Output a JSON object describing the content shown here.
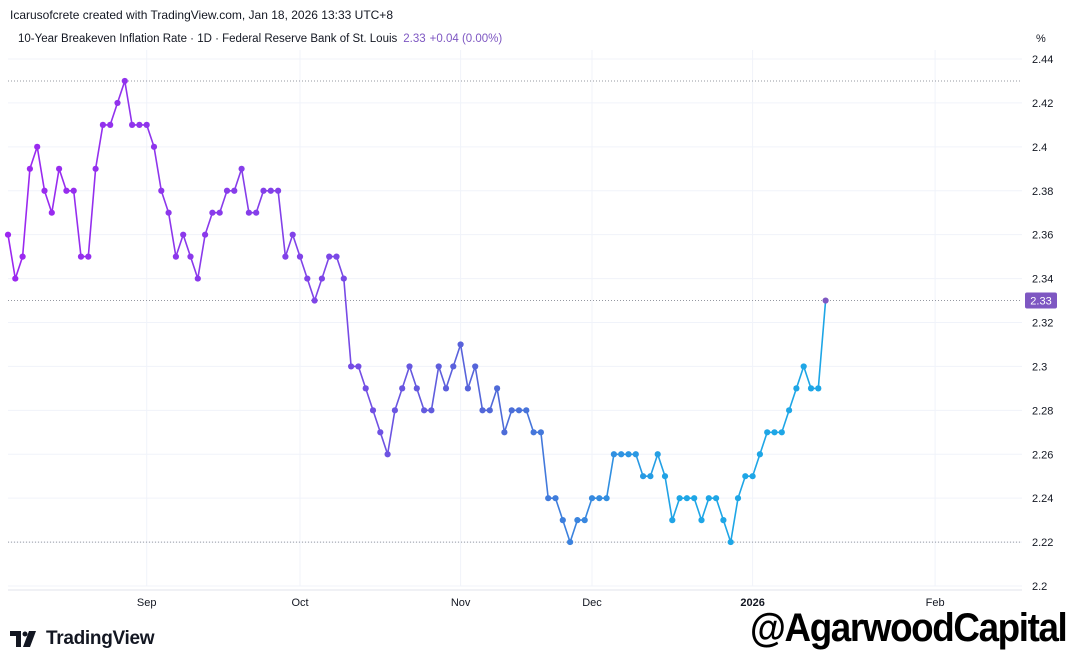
{
  "header": {
    "caption": "Icarusofcrete created with TradingView.com, Jan 18, 2026 13:33 UTC+8",
    "legend_title": "10-Year Breakeven Inflation Rate · 1D · Federal Reserve Bank of St. Louis",
    "legend_value": "2.33",
    "legend_change": "+0.04 (0.00%)",
    "unit": "%"
  },
  "footer": {
    "brand": "TradingView",
    "watermark": "@AgarwoodCapital"
  },
  "colors": {
    "line_start": "#9c27f0",
    "line_mid": "#4f6ad8",
    "line_end": "#1ea6e6",
    "last_label_bg": "#7e57c2",
    "grid": "#f0f3fa",
    "dotted": "#9598a1"
  },
  "chart_data": {
    "type": "line",
    "title": "10-Year Breakeven Inflation Rate",
    "xlabel": "",
    "ylabel": "%",
    "ylim": [
      2.2,
      2.44
    ],
    "y_ticks": [
      "2.44",
      "2.42",
      "2.4",
      "2.38",
      "2.36",
      "2.34",
      "2.32",
      "2.3",
      "2.28",
      "2.26",
      "2.24",
      "2.22",
      "2.2"
    ],
    "x_ticks": [
      {
        "label": "Sep",
        "index": 19,
        "bold": false
      },
      {
        "label": "Oct",
        "index": 40,
        "bold": false
      },
      {
        "label": "Nov",
        "index": 62,
        "bold": false
      },
      {
        "label": "Dec",
        "index": 80,
        "bold": false
      },
      {
        "label": "2026",
        "index": 102,
        "bold": true
      },
      {
        "label": "Feb",
        "index": 127,
        "bold": false
      }
    ],
    "reference_lines": [
      2.43,
      2.33,
      2.22
    ],
    "last_value": "2.33",
    "grid": true,
    "series": [
      {
        "values": [
          2.36,
          2.34,
          2.35,
          2.39,
          2.4,
          2.38,
          2.37,
          2.39,
          2.38,
          2.38,
          2.35,
          2.35,
          2.39,
          2.41,
          2.41,
          2.42,
          2.43,
          2.41,
          2.41,
          2.41,
          2.4,
          2.38,
          2.37,
          2.35,
          2.36,
          2.35,
          2.34,
          2.36,
          2.37,
          2.37,
          2.38,
          2.38,
          2.39,
          2.37,
          2.37,
          2.38,
          2.38,
          2.38,
          2.35,
          2.36,
          2.35,
          2.34,
          2.33,
          2.34,
          2.35,
          2.35,
          2.34,
          2.3,
          2.3,
          2.29,
          2.28,
          2.27,
          2.26,
          2.28,
          2.29,
          2.3,
          2.29,
          2.28,
          2.28,
          2.3,
          2.29,
          2.3,
          2.31,
          2.29,
          2.3,
          2.28,
          2.28,
          2.29,
          2.27,
          2.28,
          2.28,
          2.28,
          2.27,
          2.27,
          2.24,
          2.24,
          2.23,
          2.22,
          2.23,
          2.23,
          2.24,
          2.24,
          2.24,
          2.26,
          2.26,
          2.26,
          2.26,
          2.25,
          2.25,
          2.26,
          2.25,
          2.23,
          2.24,
          2.24,
          2.24,
          2.23,
          2.24,
          2.24,
          2.23,
          2.22,
          2.24,
          2.25,
          2.25,
          2.26,
          2.27,
          2.27,
          2.27,
          2.28,
          2.29,
          2.3,
          2.29,
          2.29,
          2.33
        ]
      }
    ]
  }
}
